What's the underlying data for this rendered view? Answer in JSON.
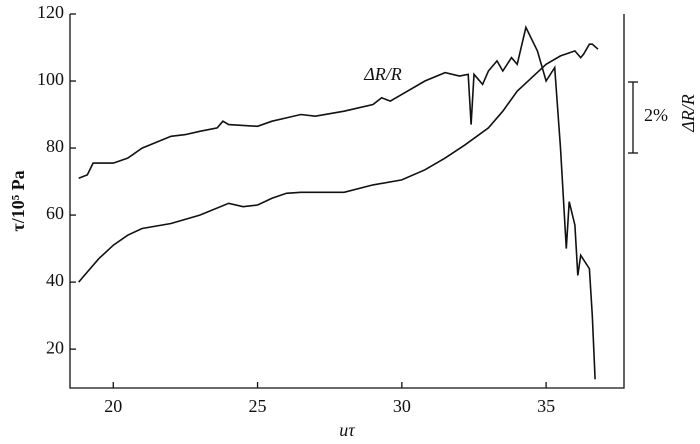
{
  "chart_data": {
    "type": "line",
    "y_label": "τ/10⁵ Pa",
    "x_label": "uτ",
    "annotations": [
      "ΔR/R",
      "2%",
      "ΔR/R"
    ],
    "xlim": [
      18.5,
      37.7
    ],
    "ylim": [
      8.4,
      120
    ],
    "xticks": [
      20,
      25,
      30,
      35
    ],
    "yticks": [
      20,
      40,
      60,
      80,
      100,
      120
    ],
    "series": [
      {
        "color": "#111111",
        "x": [
          18.8,
          19.0,
          19.5,
          20.0,
          20.5,
          21.0,
          22.0,
          23.0,
          24.0,
          24.5,
          25.0,
          25.5,
          26.0,
          26.5,
          27.0,
          28.0,
          29.0,
          30.0,
          30.8,
          31.5,
          32.2,
          33.0,
          33.5,
          34.0,
          34.5,
          35.0,
          35.5,
          36.0,
          36.2,
          36.3,
          36.5,
          36.6,
          36.8
        ],
        "values": [
          40,
          42,
          47,
          51,
          54,
          56,
          57.5,
          60,
          63.5,
          62.5,
          63,
          65,
          66.5,
          66.8,
          66.8,
          66.8,
          69,
          70.5,
          73.5,
          77,
          81,
          86,
          91,
          97,
          101,
          105,
          107.5,
          109,
          107,
          108,
          111,
          111,
          109.5
        ]
      },
      {
        "color": "#111111",
        "x": [
          18.8,
          19.1,
          19.3,
          20.0,
          20.5,
          21.0,
          22.0,
          22.5,
          23.0,
          23.6,
          23.8,
          24.0,
          25.0,
          25.5,
          26.0,
          26.5,
          27.0,
          28.0,
          29.0,
          29.3,
          29.6,
          30.0,
          30.8,
          31.5,
          32.0,
          32.3,
          32.4,
          32.5,
          32.8,
          33.0,
          33.3,
          33.5,
          33.8,
          34.0,
          34.3,
          34.7,
          35.0,
          35.3,
          35.5,
          35.7,
          35.8,
          36.0,
          36.1,
          36.2,
          36.5,
          36.6,
          36.7
        ],
        "values": [
          71,
          72,
          75.5,
          75.5,
          77,
          80,
          83.5,
          84,
          85,
          86,
          88,
          87,
          86.5,
          88,
          89,
          90,
          89.5,
          91,
          93,
          95,
          94,
          96,
          100,
          102.5,
          101.5,
          102,
          87,
          102,
          99,
          103,
          106,
          103,
          107,
          105,
          116,
          109,
          100,
          104,
          80,
          50,
          64,
          57,
          42,
          48,
          44,
          30,
          11
        ]
      }
    ]
  }
}
